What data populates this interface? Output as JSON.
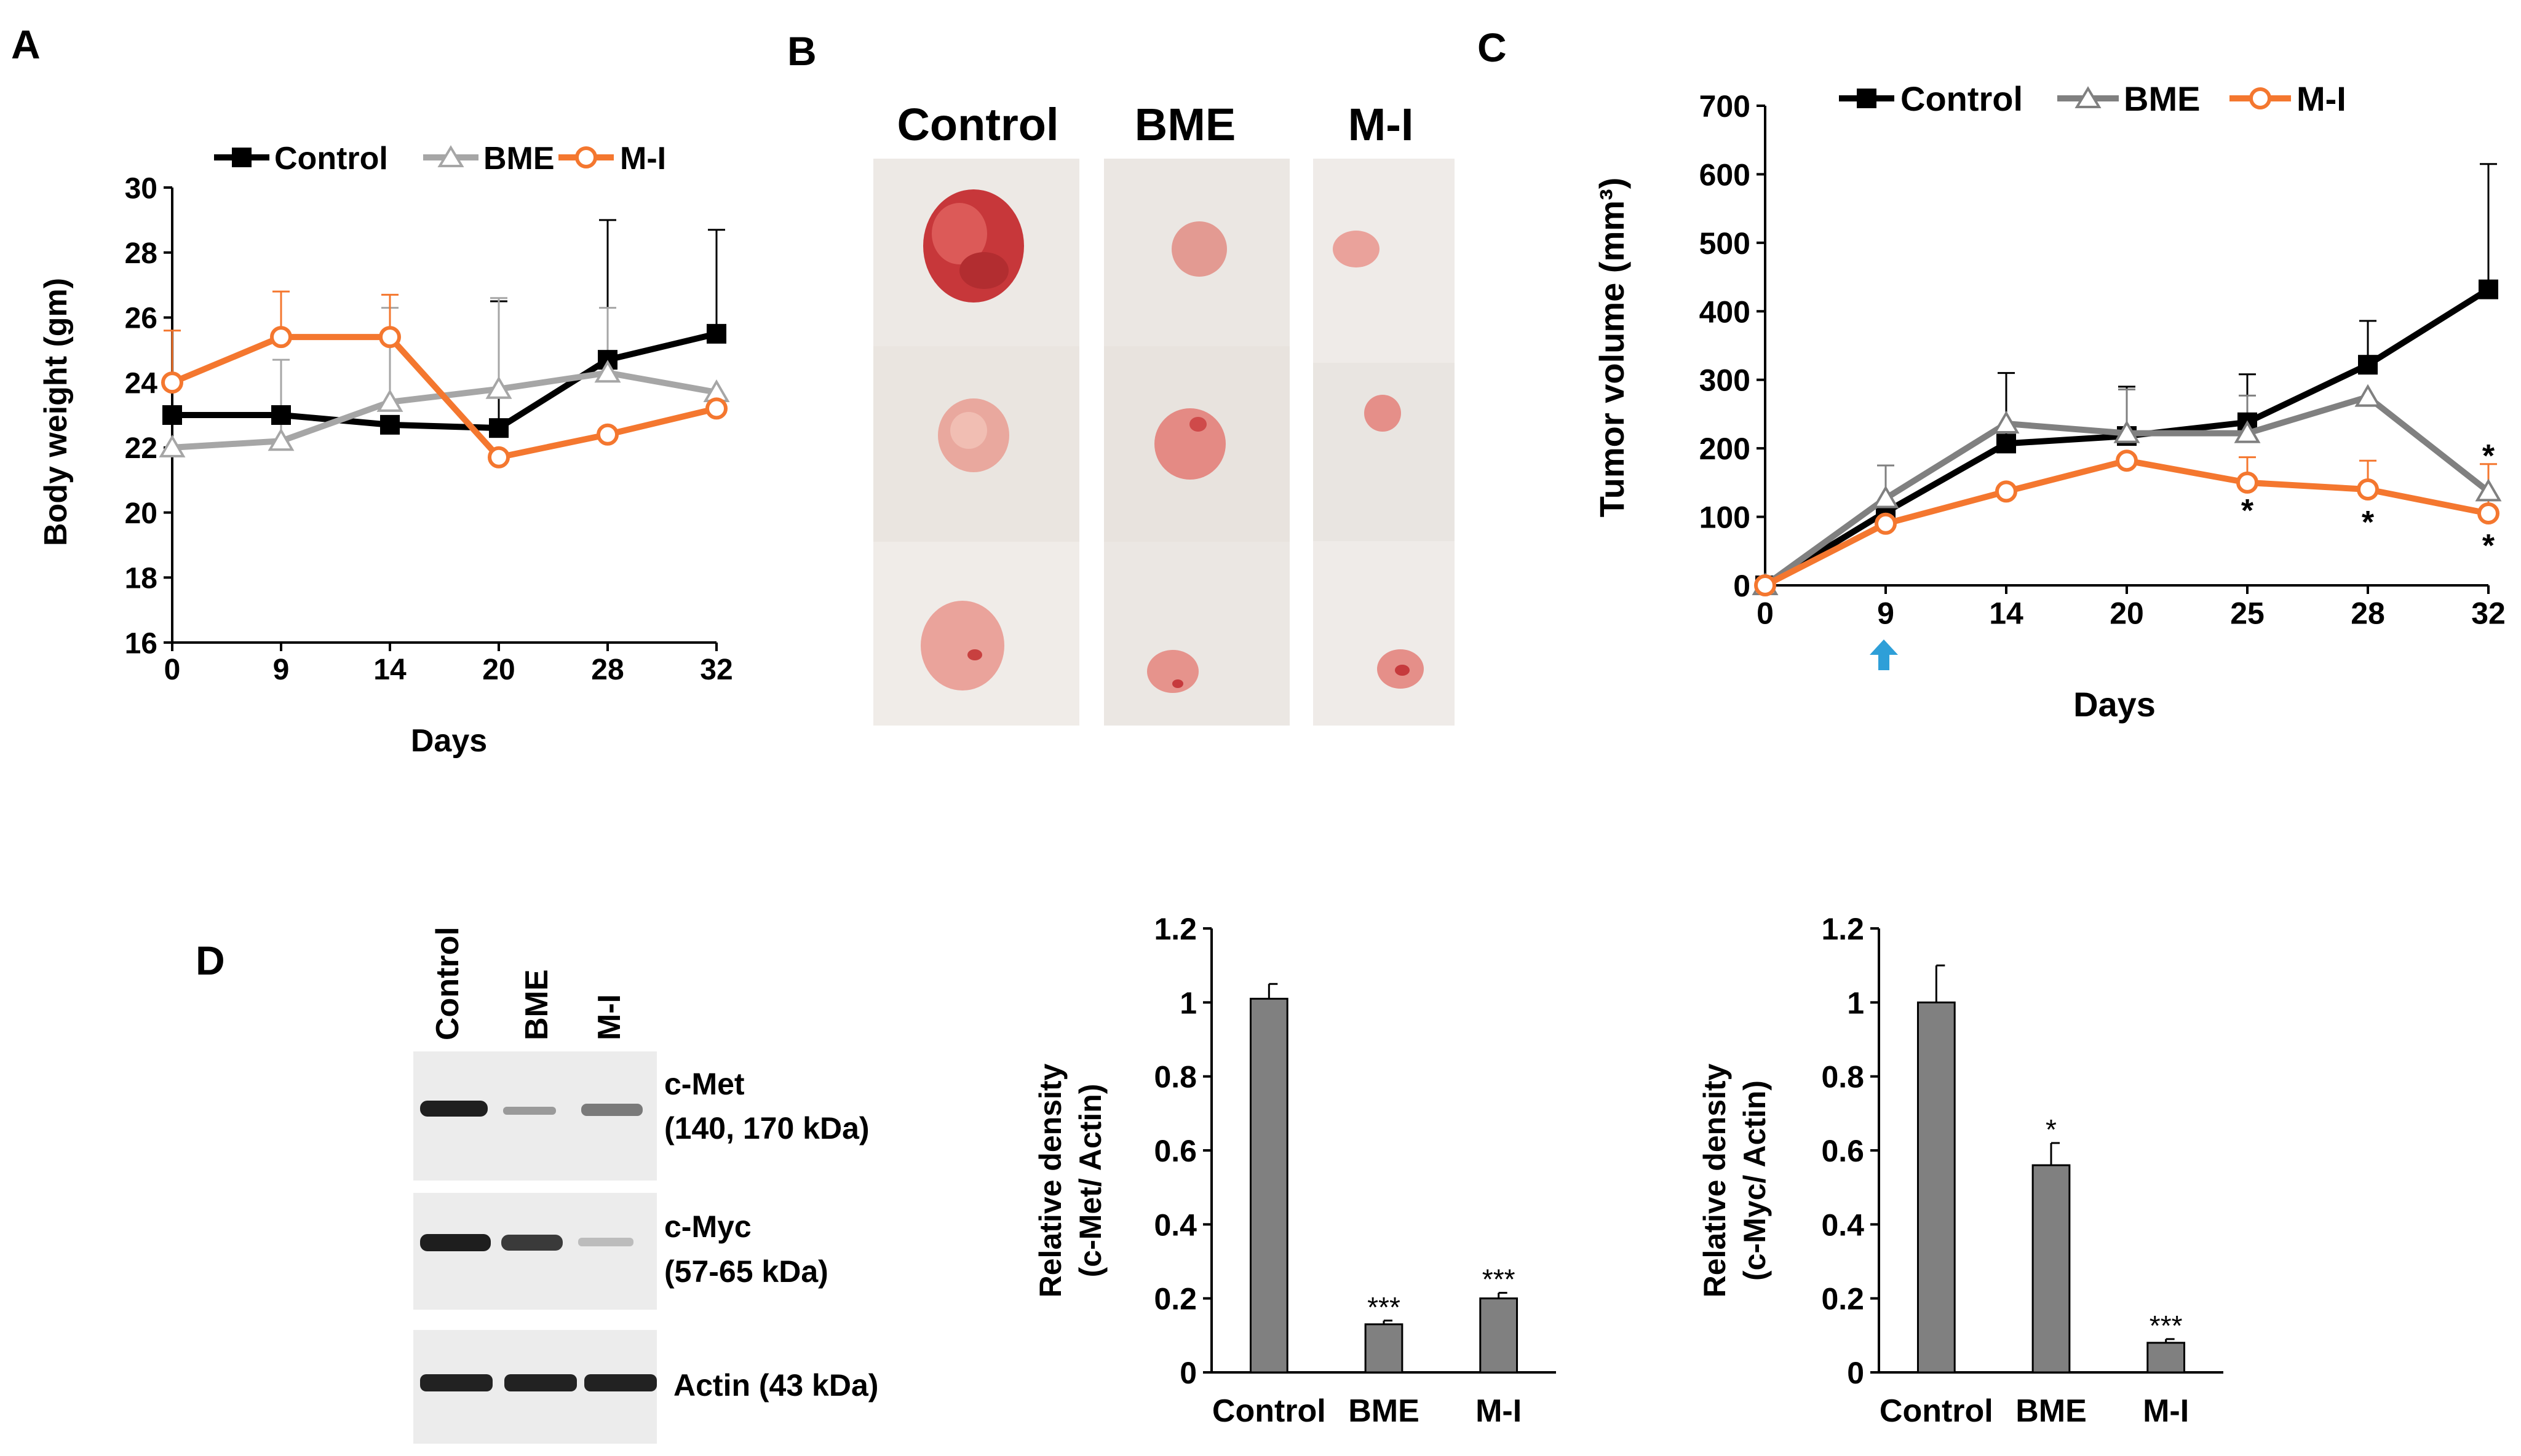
{
  "panel_labels": {
    "a": "A",
    "b": "B",
    "c": "C",
    "d": "D"
  },
  "panel_b": {
    "columns": [
      "Control",
      "BME",
      "M-I"
    ],
    "tumor_color": "#e0706e"
  },
  "colors": {
    "control": "#000000",
    "bme": "#a6a6a6",
    "bme_c": "#808080",
    "mi": "#f4772f",
    "bar": "#808080",
    "arrow": "#2e9fd8"
  },
  "blot": {
    "lanes": [
      "Control",
      "BME",
      "M-I"
    ],
    "labels": [
      {
        "l1": "c-Met",
        "l2": "(140, 170 kDa)"
      },
      {
        "l1": "c-Myc",
        "l2": "(57-65 kDa)"
      },
      {
        "l1": "Actin (43 kDa)",
        "l2": ""
      }
    ]
  },
  "chart_data": [
    {
      "id": "A",
      "type": "line",
      "xlabel": "Days",
      "ylabel": "Body weight (gm)",
      "x": [
        0,
        9,
        14,
        20,
        28,
        32
      ],
      "ylim": [
        16,
        30
      ],
      "yticks": [
        16,
        18,
        20,
        22,
        24,
        26,
        28,
        30
      ],
      "legend_position": "top",
      "series": [
        {
          "name": "Control",
          "marker": "square",
          "values": [
            23.0,
            23.0,
            22.7,
            22.6,
            24.7,
            25.5
          ],
          "err": [
            0,
            0,
            0,
            3.9,
            4.3,
            3.2
          ]
        },
        {
          "name": "BME",
          "marker": "triangle",
          "values": [
            22.0,
            22.2,
            23.4,
            23.8,
            24.3,
            23.7
          ],
          "err": [
            0,
            2.5,
            2.9,
            2.8,
            2.0,
            0
          ]
        },
        {
          "name": "M-I",
          "marker": "circle",
          "values": [
            24.0,
            25.4,
            25.4,
            21.7,
            22.4,
            23.2
          ],
          "err": [
            1.6,
            1.4,
            1.3,
            0,
            0,
            0
          ]
        }
      ]
    },
    {
      "id": "C",
      "type": "line",
      "xlabel": "Days",
      "ylabel": "Tumor volume (mm³)",
      "x": [
        0,
        9,
        14,
        20,
        25,
        28,
        32
      ],
      "ylim": [
        0,
        700
      ],
      "yticks": [
        0,
        100,
        200,
        300,
        400,
        500,
        600,
        700
      ],
      "legend_position": "top",
      "annotations": {
        "significance": "*"
      },
      "series": [
        {
          "name": "Control",
          "marker": "square",
          "values": [
            0,
            107,
            207,
            218,
            238,
            322,
            432
          ],
          "err": [
            0,
            68,
            103,
            72,
            70,
            64,
            183
          ]
        },
        {
          "name": "BME",
          "marker": "triangle",
          "values": [
            0,
            127,
            236,
            222,
            222,
            275,
            137
          ],
          "err": [
            0,
            48,
            0,
            64,
            55,
            0,
            0
          ]
        },
        {
          "name": "M-I",
          "marker": "circle",
          "values": [
            0,
            90,
            137,
            182,
            150,
            140,
            105
          ],
          "err": [
            0,
            0,
            0,
            0,
            37,
            42,
            72
          ]
        }
      ],
      "stars": [
        {
          "x": 25,
          "y": 113
        },
        {
          "x": 28,
          "y": 96
        },
        {
          "x": 32,
          "y": 62
        },
        {
          "x": 32,
          "y": 193
        }
      ]
    },
    {
      "id": "D1",
      "type": "bar",
      "ylabel_line1": "Relative density",
      "ylabel_line2": "(c-Met/ Actin)",
      "categories": [
        "Control",
        "BME",
        "M-I"
      ],
      "values": [
        1.01,
        0.13,
        0.2
      ],
      "err": [
        0.04,
        0.01,
        0.015
      ],
      "annotations": [
        "",
        "***",
        "***"
      ],
      "ylim": [
        0,
        1.2
      ],
      "yticks": [
        0,
        0.2,
        0.4,
        0.6,
        0.8,
        1,
        1.2
      ]
    },
    {
      "id": "D2",
      "type": "bar",
      "ylabel_line1": "Relative density",
      "ylabel_line2": "(c-Myc/ Actin)",
      "categories": [
        "Control",
        "BME",
        "M-I"
      ],
      "values": [
        1.0,
        0.56,
        0.08
      ],
      "err": [
        0.1,
        0.06,
        0.01
      ],
      "annotations": [
        "",
        "*",
        "***"
      ],
      "ylim": [
        0,
        1.2
      ],
      "yticks": [
        0,
        0.2,
        0.4,
        0.6,
        0.8,
        1,
        1.2
      ]
    }
  ]
}
